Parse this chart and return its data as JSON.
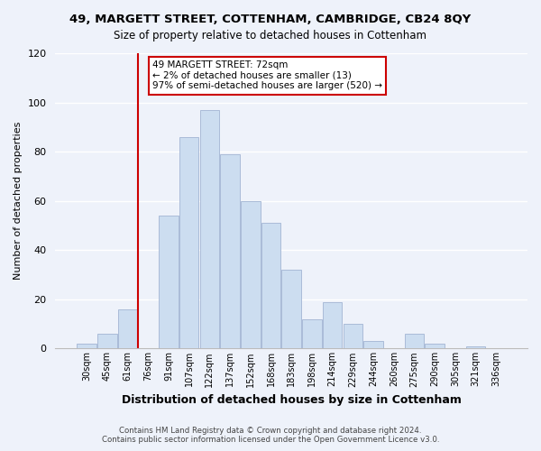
{
  "title": "49, MARGETT STREET, COTTENHAM, CAMBRIDGE, CB24 8QY",
  "subtitle": "Size of property relative to detached houses in Cottenham",
  "xlabel": "Distribution of detached houses by size in Cottenham",
  "ylabel": "Number of detached properties",
  "bar_labels": [
    "30sqm",
    "45sqm",
    "61sqm",
    "76sqm",
    "91sqm",
    "107sqm",
    "122sqm",
    "137sqm",
    "152sqm",
    "168sqm",
    "183sqm",
    "198sqm",
    "214sqm",
    "229sqm",
    "244sqm",
    "260sqm",
    "275sqm",
    "290sqm",
    "305sqm",
    "321sqm",
    "336sqm"
  ],
  "bar_values": [
    2,
    6,
    16,
    0,
    54,
    86,
    97,
    79,
    60,
    51,
    32,
    12,
    19,
    10,
    3,
    0,
    6,
    2,
    0,
    1,
    0
  ],
  "bar_color": "#ccddf0",
  "bar_edge_color": "#aabbd8",
  "vline_color": "#cc0000",
  "annotation_text": "49 MARGETT STREET: 72sqm\n← 2% of detached houses are smaller (13)\n97% of semi-detached houses are larger (520) →",
  "annotation_box_color": "#ffffff",
  "annotation_box_edge": "#cc0000",
  "footer1": "Contains HM Land Registry data © Crown copyright and database right 2024.",
  "footer2": "Contains public sector information licensed under the Open Government Licence v3.0.",
  "ylim": [
    0,
    120
  ],
  "yticks": [
    0,
    20,
    40,
    60,
    80,
    100,
    120
  ],
  "bg_color": "#eef2fa",
  "grid_color": "#ffffff"
}
